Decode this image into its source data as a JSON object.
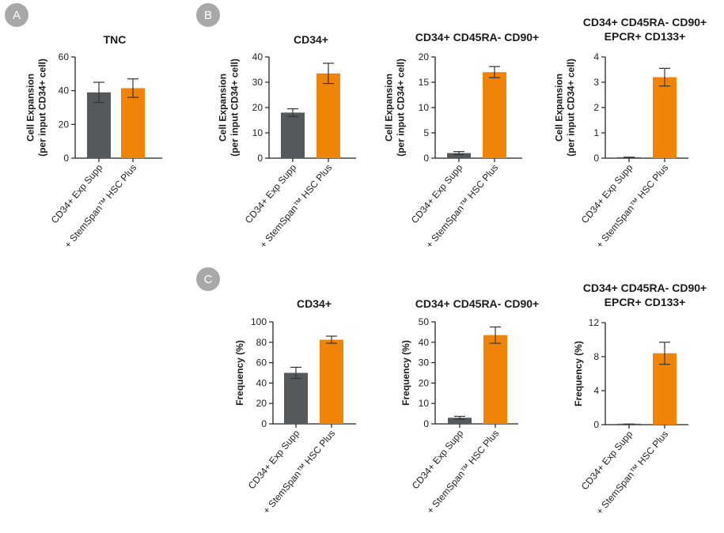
{
  "colors": {
    "control": "#55595c",
    "treatment": "#f08406",
    "badge": "#a8a8a8"
  },
  "panels": [
    {
      "letter": "A"
    },
    {
      "letter": "B"
    },
    {
      "letter": "C"
    }
  ],
  "chart_data": [
    {
      "type": "bar",
      "panel": "A",
      "title": [
        "TNC"
      ],
      "ylabel": [
        "Cell Expansion",
        "(per input CD34+ cell)"
      ],
      "categories": [
        "CD34+ Exp Supp",
        "+ StemSpan™ HSC Plus"
      ],
      "values": [
        39,
        41.5
      ],
      "errors": [
        6,
        5.5
      ],
      "ylim": [
        0,
        60
      ],
      "yticks": [
        0,
        20,
        40,
        60
      ]
    },
    {
      "type": "bar",
      "panel": "B",
      "title": [
        "CD34+"
      ],
      "ylabel": [
        "Cell Expansion",
        "(per input CD34+ cell)"
      ],
      "categories": [
        "CD34+ Exp Supp",
        "+ StemSpan™ HSC Plus"
      ],
      "values": [
        18,
        33.5
      ],
      "errors": [
        1.5,
        4
      ],
      "ylim": [
        0,
        40
      ],
      "yticks": [
        0,
        10,
        20,
        30,
        40
      ]
    },
    {
      "type": "bar",
      "panel": "B",
      "title": [
        "CD34+ CD45RA- CD90+"
      ],
      "ylabel": [
        "Cell Expansion",
        "(per input CD34+ cell)"
      ],
      "categories": [
        "CD34+ Exp Supp",
        "+ StemSpan™ HSC Plus"
      ],
      "values": [
        1,
        17
      ],
      "errors": [
        0.3,
        1.1
      ],
      "ylim": [
        0,
        20
      ],
      "yticks": [
        0,
        5,
        10,
        15,
        20
      ]
    },
    {
      "type": "bar",
      "panel": "B",
      "title": [
        "CD34+ CD45RA- CD90+",
        "EPCR+ CD133+"
      ],
      "ylabel": [
        "Cell Expansion",
        "(per input CD34+ cell)"
      ],
      "categories": [
        "CD34+ Exp Supp",
        "+ StemSpan™ HSC Plus"
      ],
      "values": [
        0.03,
        3.2
      ],
      "errors": [
        0.01,
        0.35
      ],
      "ylim": [
        0,
        4
      ],
      "yticks": [
        0,
        1,
        2,
        3,
        4
      ]
    },
    {
      "type": "bar",
      "panel": "C",
      "title": [
        "CD34+"
      ],
      "ylabel": [
        "Frequency (%)"
      ],
      "categories": [
        "CD34+ Exp Supp",
        "+ StemSpan™ HSC Plus"
      ],
      "values": [
        50,
        82.5
      ],
      "errors": [
        5.5,
        3.5
      ],
      "ylim": [
        0,
        100
      ],
      "yticks": [
        0,
        20,
        40,
        60,
        80,
        100
      ]
    },
    {
      "type": "bar",
      "panel": "C",
      "title": [
        "CD34+ CD45RA- CD90+"
      ],
      "ylabel": [
        "Frequency (%)"
      ],
      "categories": [
        "CD34+ Exp Supp",
        "+ StemSpan™ HSC Plus"
      ],
      "values": [
        3,
        43.5
      ],
      "errors": [
        0.7,
        4
      ],
      "ylim": [
        0,
        50
      ],
      "yticks": [
        0,
        10,
        20,
        30,
        40,
        50
      ]
    },
    {
      "type": "bar",
      "panel": "C",
      "title": [
        "CD34+ CD45RA- CD90+",
        "EPCR+ CD133+"
      ],
      "ylabel": [
        "Frequency (%)"
      ],
      "categories": [
        "CD34+ Exp Supp",
        "+ StemSpan™ HSC Plus"
      ],
      "values": [
        0.05,
        8.4
      ],
      "errors": [
        0.02,
        1.3
      ],
      "ylim": [
        0,
        12
      ],
      "yticks": [
        0,
        4,
        8,
        12
      ]
    }
  ]
}
